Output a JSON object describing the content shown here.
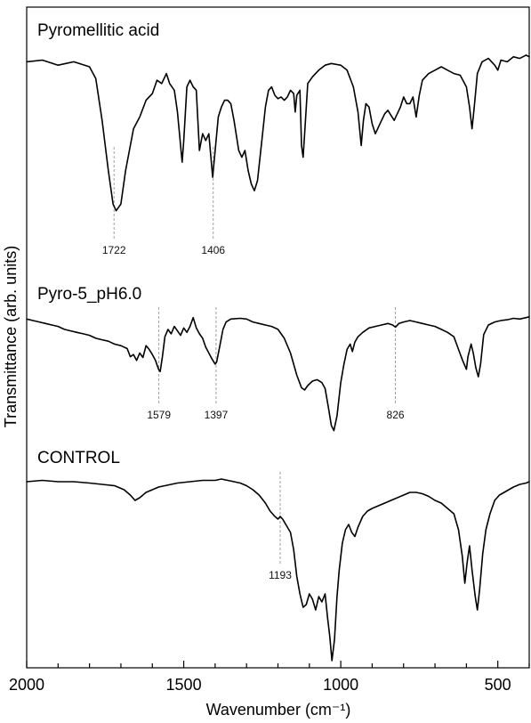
{
  "chart_data": {
    "type": "line",
    "xlabel": "Wavenumber (cm⁻¹)",
    "ylabel": "Transmittance (arb. units)",
    "xlim": [
      2000,
      400
    ],
    "x_reversed": true,
    "x_ticks": [
      2000,
      1500,
      1000,
      500
    ],
    "y_ticks_shown": false,
    "series": [
      {
        "name": "Pyromellitic acid",
        "band": "top",
        "points": [
          [
            2000,
            0.95
          ],
          [
            1950,
            0.96
          ],
          [
            1900,
            0.93
          ],
          [
            1850,
            0.95
          ],
          [
            1800,
            0.92
          ],
          [
            1780,
            0.85
          ],
          [
            1760,
            0.6
          ],
          [
            1740,
            0.3
          ],
          [
            1725,
            0.1
          ],
          [
            1715,
            0.06
          ],
          [
            1700,
            0.1
          ],
          [
            1685,
            0.3
          ],
          [
            1660,
            0.55
          ],
          [
            1640,
            0.62
          ],
          [
            1620,
            0.72
          ],
          [
            1600,
            0.76
          ],
          [
            1585,
            0.84
          ],
          [
            1570,
            0.82
          ],
          [
            1555,
            0.88
          ],
          [
            1545,
            0.82
          ],
          [
            1530,
            0.78
          ],
          [
            1520,
            0.65
          ],
          [
            1505,
            0.35
          ],
          [
            1500,
            0.48
          ],
          [
            1490,
            0.8
          ],
          [
            1480,
            0.84
          ],
          [
            1470,
            0.8
          ],
          [
            1460,
            0.78
          ],
          [
            1450,
            0.42
          ],
          [
            1440,
            0.52
          ],
          [
            1430,
            0.48
          ],
          [
            1420,
            0.52
          ],
          [
            1408,
            0.26
          ],
          [
            1400,
            0.42
          ],
          [
            1390,
            0.62
          ],
          [
            1380,
            0.68
          ],
          [
            1370,
            0.72
          ],
          [
            1360,
            0.72
          ],
          [
            1350,
            0.7
          ],
          [
            1340,
            0.6
          ],
          [
            1325,
            0.42
          ],
          [
            1315,
            0.38
          ],
          [
            1305,
            0.42
          ],
          [
            1295,
            0.3
          ],
          [
            1285,
            0.22
          ],
          [
            1275,
            0.18
          ],
          [
            1265,
            0.24
          ],
          [
            1250,
            0.5
          ],
          [
            1240,
            0.68
          ],
          [
            1230,
            0.78
          ],
          [
            1220,
            0.8
          ],
          [
            1210,
            0.75
          ],
          [
            1200,
            0.73
          ],
          [
            1190,
            0.74
          ],
          [
            1180,
            0.72
          ],
          [
            1170,
            0.74
          ],
          [
            1160,
            0.78
          ],
          [
            1150,
            0.76
          ],
          [
            1145,
            0.65
          ],
          [
            1140,
            0.75
          ],
          [
            1130,
            0.78
          ],
          [
            1125,
            0.45
          ],
          [
            1120,
            0.38
          ],
          [
            1115,
            0.52
          ],
          [
            1105,
            0.82
          ],
          [
            1090,
            0.86
          ],
          [
            1070,
            0.9
          ],
          [
            1050,
            0.93
          ],
          [
            1030,
            0.94
          ],
          [
            1000,
            0.93
          ],
          [
            980,
            0.9
          ],
          [
            960,
            0.8
          ],
          [
            945,
            0.65
          ],
          [
            935,
            0.45
          ],
          [
            928,
            0.6
          ],
          [
            920,
            0.7
          ],
          [
            910,
            0.68
          ],
          [
            900,
            0.58
          ],
          [
            890,
            0.52
          ],
          [
            880,
            0.56
          ],
          [
            870,
            0.6
          ],
          [
            860,
            0.64
          ],
          [
            850,
            0.66
          ],
          [
            840,
            0.63
          ],
          [
            830,
            0.6
          ],
          [
            820,
            0.64
          ],
          [
            810,
            0.68
          ],
          [
            800,
            0.74
          ],
          [
            790,
            0.7
          ],
          [
            780,
            0.7
          ],
          [
            770,
            0.74
          ],
          [
            760,
            0.62
          ],
          [
            750,
            0.75
          ],
          [
            740,
            0.84
          ],
          [
            720,
            0.88
          ],
          [
            700,
            0.9
          ],
          [
            680,
            0.92
          ],
          [
            660,
            0.9
          ],
          [
            640,
            0.88
          ],
          [
            620,
            0.87
          ],
          [
            600,
            0.8
          ],
          [
            590,
            0.68
          ],
          [
            582,
            0.55
          ],
          [
            575,
            0.68
          ],
          [
            565,
            0.88
          ],
          [
            550,
            0.95
          ],
          [
            530,
            0.97
          ],
          [
            510,
            0.93
          ],
          [
            500,
            0.9
          ],
          [
            490,
            0.96
          ],
          [
            470,
            0.95
          ],
          [
            450,
            0.98
          ],
          [
            430,
            0.97
          ],
          [
            410,
            0.99
          ],
          [
            400,
            0.98
          ]
        ],
        "annotations": [
          1722,
          1406
        ]
      },
      {
        "name": "Pyro-5_pH6.0",
        "band": "middle",
        "points": [
          [
            2000,
            0.96
          ],
          [
            1980,
            0.94
          ],
          [
            1960,
            0.92
          ],
          [
            1940,
            0.9
          ],
          [
            1920,
            0.88
          ],
          [
            1900,
            0.86
          ],
          [
            1880,
            0.82
          ],
          [
            1860,
            0.8
          ],
          [
            1840,
            0.78
          ],
          [
            1820,
            0.76
          ],
          [
            1800,
            0.74
          ],
          [
            1780,
            0.7
          ],
          [
            1760,
            0.68
          ],
          [
            1740,
            0.66
          ],
          [
            1720,
            0.62
          ],
          [
            1700,
            0.6
          ],
          [
            1680,
            0.56
          ],
          [
            1670,
            0.45
          ],
          [
            1660,
            0.48
          ],
          [
            1650,
            0.4
          ],
          [
            1640,
            0.5
          ],
          [
            1630,
            0.44
          ],
          [
            1620,
            0.6
          ],
          [
            1610,
            0.55
          ],
          [
            1600,
            0.48
          ],
          [
            1590,
            0.4
          ],
          [
            1580,
            0.28
          ],
          [
            1575,
            0.25
          ],
          [
            1568,
            0.45
          ],
          [
            1560,
            0.72
          ],
          [
            1550,
            0.82
          ],
          [
            1540,
            0.76
          ],
          [
            1530,
            0.86
          ],
          [
            1520,
            0.8
          ],
          [
            1510,
            0.74
          ],
          [
            1500,
            0.84
          ],
          [
            1490,
            0.78
          ],
          [
            1480,
            0.86
          ],
          [
            1470,
            0.98
          ],
          [
            1460,
            0.84
          ],
          [
            1450,
            0.76
          ],
          [
            1440,
            0.7
          ],
          [
            1430,
            0.58
          ],
          [
            1420,
            0.5
          ],
          [
            1410,
            0.42
          ],
          [
            1400,
            0.35
          ],
          [
            1395,
            0.38
          ],
          [
            1385,
            0.6
          ],
          [
            1375,
            0.82
          ],
          [
            1365,
            0.92
          ],
          [
            1350,
            0.96
          ],
          [
            1320,
            0.97
          ],
          [
            1300,
            0.96
          ],
          [
            1280,
            0.92
          ],
          [
            1260,
            0.9
          ],
          [
            1240,
            0.88
          ],
          [
            1220,
            0.86
          ],
          [
            1200,
            0.82
          ],
          [
            1180,
            0.7
          ],
          [
            1160,
            0.5
          ],
          [
            1140,
            0.2
          ],
          [
            1125,
            0.03
          ],
          [
            1115,
            0.0
          ],
          [
            1105,
            0.06
          ],
          [
            1090,
            0.12
          ],
          [
            1075,
            0.14
          ],
          [
            1060,
            0.1
          ],
          [
            1050,
            0.02
          ],
          [
            1040,
            -0.22
          ],
          [
            1030,
            -0.48
          ],
          [
            1022,
            -0.55
          ],
          [
            1012,
            -0.35
          ],
          [
            1000,
            0.1
          ],
          [
            990,
            0.35
          ],
          [
            980,
            0.55
          ],
          [
            970,
            0.62
          ],
          [
            963,
            0.52
          ],
          [
            955,
            0.65
          ],
          [
            945,
            0.72
          ],
          [
            930,
            0.78
          ],
          [
            910,
            0.84
          ],
          [
            890,
            0.86
          ],
          [
            870,
            0.88
          ],
          [
            850,
            0.9
          ],
          [
            835,
            0.88
          ],
          [
            826,
            0.85
          ],
          [
            815,
            0.9
          ],
          [
            800,
            0.92
          ],
          [
            780,
            0.94
          ],
          [
            760,
            0.92
          ],
          [
            740,
            0.9
          ],
          [
            720,
            0.88
          ],
          [
            700,
            0.86
          ],
          [
            680,
            0.82
          ],
          [
            660,
            0.78
          ],
          [
            640,
            0.72
          ],
          [
            625,
            0.55
          ],
          [
            612,
            0.4
          ],
          [
            600,
            0.28
          ],
          [
            595,
            0.45
          ],
          [
            585,
            0.62
          ],
          [
            578,
            0.5
          ],
          [
            570,
            0.3
          ],
          [
            562,
            0.18
          ],
          [
            555,
            0.35
          ],
          [
            545,
            0.75
          ],
          [
            530,
            0.88
          ],
          [
            510,
            0.92
          ],
          [
            490,
            0.94
          ],
          [
            470,
            0.95
          ],
          [
            450,
            0.97
          ],
          [
            430,
            0.96
          ],
          [
            410,
            0.98
          ],
          [
            400,
            0.99
          ]
        ],
        "annotations": [
          1579,
          1397,
          826
        ]
      },
      {
        "name": "CONTROL",
        "band": "bottom",
        "points": [
          [
            2000,
            0.96
          ],
          [
            1950,
            0.97
          ],
          [
            1900,
            0.96
          ],
          [
            1850,
            0.96
          ],
          [
            1800,
            0.95
          ],
          [
            1760,
            0.94
          ],
          [
            1720,
            0.93
          ],
          [
            1690,
            0.9
          ],
          [
            1670,
            0.86
          ],
          [
            1655,
            0.82
          ],
          [
            1640,
            0.84
          ],
          [
            1620,
            0.88
          ],
          [
            1600,
            0.9
          ],
          [
            1580,
            0.92
          ],
          [
            1560,
            0.93
          ],
          [
            1520,
            0.95
          ],
          [
            1480,
            0.96
          ],
          [
            1440,
            0.97
          ],
          [
            1400,
            0.97
          ],
          [
            1380,
            0.98
          ],
          [
            1360,
            0.97
          ],
          [
            1340,
            0.96
          ],
          [
            1320,
            0.95
          ],
          [
            1300,
            0.93
          ],
          [
            1280,
            0.9
          ],
          [
            1260,
            0.86
          ],
          [
            1240,
            0.8
          ],
          [
            1225,
            0.74
          ],
          [
            1210,
            0.7
          ],
          [
            1200,
            0.68
          ],
          [
            1193,
            0.7
          ],
          [
            1185,
            0.68
          ],
          [
            1175,
            0.64
          ],
          [
            1160,
            0.58
          ],
          [
            1150,
            0.45
          ],
          [
            1140,
            0.25
          ],
          [
            1130,
            0.12
          ],
          [
            1120,
            0.02
          ],
          [
            1110,
            0.04
          ],
          [
            1100,
            0.12
          ],
          [
            1090,
            0.08
          ],
          [
            1080,
            0.0
          ],
          [
            1070,
            0.1
          ],
          [
            1060,
            0.06
          ],
          [
            1050,
            0.12
          ],
          [
            1042,
            -0.06
          ],
          [
            1035,
            -0.2
          ],
          [
            1028,
            -0.38
          ],
          [
            1020,
            -0.22
          ],
          [
            1012,
            0.1
          ],
          [
            1005,
            0.3
          ],
          [
            995,
            0.5
          ],
          [
            985,
            0.6
          ],
          [
            975,
            0.64
          ],
          [
            965,
            0.58
          ],
          [
            955,
            0.55
          ],
          [
            945,
            0.62
          ],
          [
            930,
            0.7
          ],
          [
            915,
            0.74
          ],
          [
            900,
            0.76
          ],
          [
            880,
            0.78
          ],
          [
            860,
            0.8
          ],
          [
            840,
            0.82
          ],
          [
            820,
            0.84
          ],
          [
            800,
            0.86
          ],
          [
            780,
            0.88
          ],
          [
            760,
            0.88
          ],
          [
            740,
            0.87
          ],
          [
            720,
            0.85
          ],
          [
            700,
            0.82
          ],
          [
            680,
            0.8
          ],
          [
            660,
            0.76
          ],
          [
            640,
            0.72
          ],
          [
            625,
            0.6
          ],
          [
            613,
            0.4
          ],
          [
            605,
            0.2
          ],
          [
            598,
            0.35
          ],
          [
            590,
            0.48
          ],
          [
            582,
            0.3
          ],
          [
            572,
            0.1
          ],
          [
            565,
            0.0
          ],
          [
            558,
            0.15
          ],
          [
            548,
            0.42
          ],
          [
            538,
            0.6
          ],
          [
            525,
            0.72
          ],
          [
            510,
            0.82
          ],
          [
            495,
            0.86
          ],
          [
            480,
            0.88
          ],
          [
            465,
            0.9
          ],
          [
            450,
            0.92
          ],
          [
            430,
            0.94
          ],
          [
            410,
            0.95
          ],
          [
            400,
            0.96
          ]
        ],
        "annotations": [
          1193
        ]
      }
    ]
  }
}
